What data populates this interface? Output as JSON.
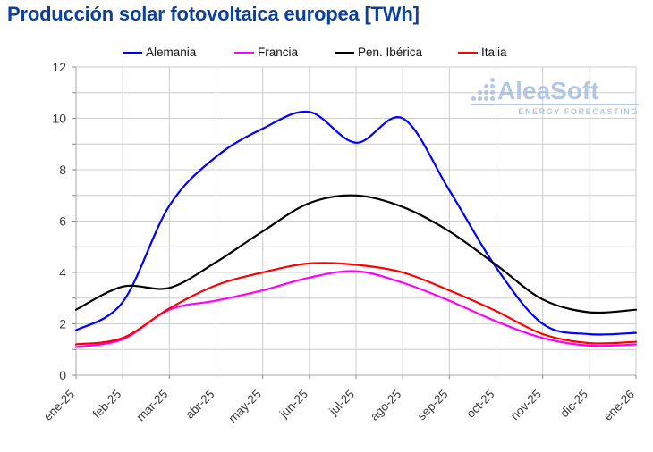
{
  "header": {
    "title": "Producción solar fotovoltaica europea [TWh]"
  },
  "watermark": {
    "brand": "AleaSoft",
    "tagline": "ENERGY FORECASTING",
    "color": "#a6bedd"
  },
  "colors": {
    "title": "#0d4199",
    "grid": "#cccccc",
    "axis_line": "#aaaaaa",
    "tick_mark": "#888888",
    "axis_text": "#3a3a3a",
    "legend_text": "#111111",
    "background": "#ffffff"
  },
  "chart_data": {
    "type": "line",
    "title": "Producción solar fotovoltaica europea [TWh]",
    "xlabel": "",
    "ylabel": "",
    "unit": "TWh",
    "grid": true,
    "legend_position": "top",
    "ylim": [
      0,
      12
    ],
    "ytick_step": 1,
    "ytick_label_step": 2,
    "categories": [
      "ene-25",
      "feb-25",
      "mar-25",
      "abr-25",
      "may-25",
      "jun-25",
      "jul-25",
      "ago-25",
      "sep-25",
      "oct-25",
      "nov-25",
      "dic-25",
      "ene-26"
    ],
    "series": [
      {
        "name": "Alemania",
        "color": "#0000ff",
        "values": [
          1.75,
          2.85,
          6.6,
          8.5,
          9.6,
          10.25,
          9.05,
          10.0,
          7.2,
          4.2,
          2.0,
          1.6,
          1.65
        ]
      },
      {
        "name": "Francia",
        "color": "#ff00ff",
        "values": [
          1.1,
          1.4,
          2.55,
          2.9,
          3.3,
          3.8,
          4.05,
          3.6,
          2.9,
          2.1,
          1.45,
          1.15,
          1.2
        ]
      },
      {
        "name": "Pen. Ibérica",
        "color": "#000000",
        "values": [
          2.55,
          3.45,
          3.4,
          4.4,
          5.6,
          6.7,
          7.0,
          6.55,
          5.6,
          4.3,
          2.95,
          2.45,
          2.55
        ]
      },
      {
        "name": "Italia",
        "color": "#ff0000",
        "values": [
          1.2,
          1.45,
          2.6,
          3.5,
          4.0,
          4.35,
          4.3,
          4.0,
          3.3,
          2.5,
          1.6,
          1.25,
          1.3
        ]
      }
    ]
  }
}
